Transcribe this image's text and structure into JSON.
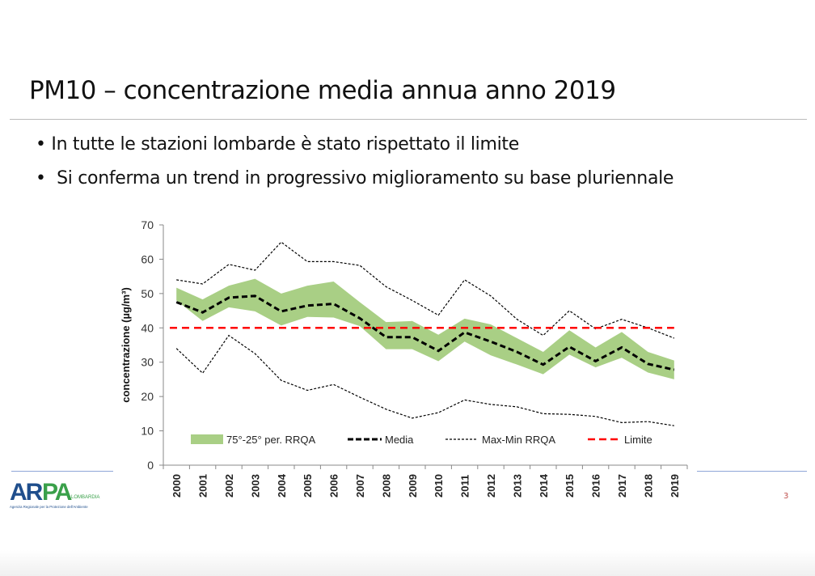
{
  "slide": {
    "title": "PM10 – concentrazione media annua anno 2019",
    "bullets": [
      "In tutte le stazioni lombarde è stato rispettato il limite",
      "Si conferma un trend in progressivo miglioramento su base pluriennale"
    ],
    "page_number": "3",
    "logo": {
      "text": "ARPA LOMBARDIA",
      "subtitle": "Agenzia Regionale per la Protezione dell'Ambiente"
    }
  },
  "chart_data": {
    "type": "line",
    "ylabel": "concentrazione (µg/m³)",
    "xlabel": "",
    "ylim": [
      0,
      70
    ],
    "yticks": [
      0,
      10,
      20,
      30,
      40,
      50,
      60,
      70
    ],
    "x": [
      "2000",
      "2001",
      "2002",
      "2003",
      "2004",
      "2005",
      "2006",
      "2007",
      "2008",
      "2009",
      "2010",
      "2011",
      "2012",
      "2013",
      "2014",
      "2015",
      "2016",
      "2017",
      "2018",
      "2019"
    ],
    "band": {
      "name": "75°-25° per. RRQA",
      "color": "#a9cf85",
      "upper": [
        51.7,
        48.3,
        52.3,
        54.3,
        50,
        52.3,
        53.5,
        47.5,
        41.7,
        42,
        38,
        42.7,
        41,
        37,
        33,
        39.3,
        34.3,
        38.8,
        33,
        30.5
      ],
      "lower": [
        48,
        42,
        46,
        44.8,
        40.7,
        43.2,
        43,
        40.5,
        33.8,
        33.8,
        30.3,
        36,
        32,
        29.3,
        26.5,
        32.2,
        28.5,
        31.3,
        27,
        25
      ]
    },
    "series": [
      {
        "name": "Media",
        "color": "#000000",
        "values": [
          47.5,
          44.5,
          48.8,
          49.3,
          44.8,
          46.5,
          47,
          42.8,
          37.3,
          37.3,
          33.3,
          38.7,
          36,
          33,
          29.3,
          34.5,
          30.3,
          34.3,
          29.5,
          27.8
        ]
      },
      {
        "name": "Max-Min RRQA",
        "color": "#000000",
        "max": [
          54,
          52.8,
          58.5,
          56.8,
          65,
          59.3,
          59.3,
          58.2,
          52,
          48,
          43.7,
          54,
          49.3,
          42.5,
          37.8,
          45,
          39.7,
          42.5,
          40,
          37
        ],
        "min": [
          34,
          26.8,
          37.8,
          32.5,
          24.7,
          21.8,
          23.5,
          19.8,
          16.3,
          13.7,
          15.3,
          19,
          17.7,
          17,
          15,
          14.8,
          14.2,
          12.4,
          12.7,
          11.5
        ]
      },
      {
        "name": "Limite",
        "color": "#ff0000",
        "value": 40
      }
    ],
    "legend": "bottom-inside",
    "grid": false
  }
}
